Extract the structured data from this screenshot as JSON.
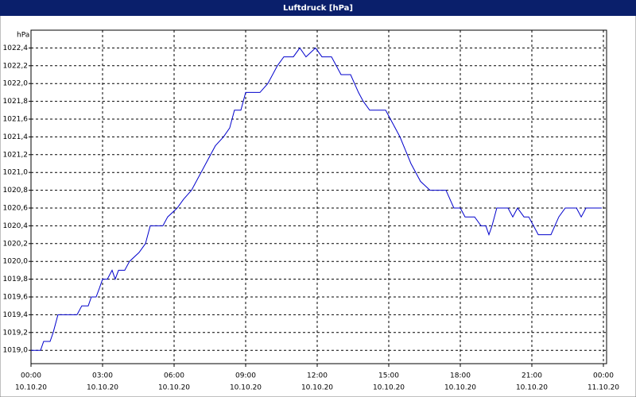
{
  "window_title": "Luftdruck [hPa]",
  "chart_data": {
    "type": "line",
    "y_label": "hPa",
    "x": [
      0,
      0.4,
      0.53,
      0.8,
      0.93,
      1.13,
      1.93,
      2.13,
      2.4,
      2.53,
      2.73,
      2.87,
      3,
      3.2,
      3.4,
      3.53,
      3.67,
      3.93,
      4.13,
      4.53,
      4.8,
      5,
      5.53,
      5.73,
      6.13,
      6.4,
      6.73,
      7.73,
      8.07,
      8.33,
      8.53,
      8.8,
      9,
      9.6,
      9.93,
      10.33,
      10.6,
      11,
      11.27,
      11.53,
      11.93,
      12.2,
      12.6,
      13,
      13.4,
      13.73,
      13.93,
      14.2,
      14.87,
      15.07,
      15.47,
      15.93,
      16.33,
      16.73,
      17.4,
      17.73,
      18,
      18.2,
      18.6,
      18.87,
      19.07,
      19.2,
      19.33,
      19.53,
      20,
      20.2,
      20.4,
      20.67,
      20.87,
      21.27,
      21.8,
      22.13,
      22.4,
      22.87,
      23.07,
      23.27,
      23.93
    ],
    "series": [
      {
        "name": "Luftdruck",
        "color": "#0000cc",
        "values": [
          1019.0,
          1019.0,
          1019.1,
          1019.1,
          1019.2,
          1019.4,
          1019.4,
          1019.5,
          1019.5,
          1019.6,
          1019.6,
          1019.7,
          1019.8,
          1019.8,
          1019.9,
          1019.8,
          1019.9,
          1019.9,
          1020.0,
          1020.1,
          1020.2,
          1020.4,
          1020.4,
          1020.5,
          1020.6,
          1020.7,
          1020.8,
          1021.3,
          1021.4,
          1021.5,
          1021.7,
          1021.7,
          1021.9,
          1021.9,
          1022.0,
          1022.2,
          1022.3,
          1022.3,
          1022.4,
          1022.3,
          1022.4,
          1022.3,
          1022.3,
          1022.1,
          1022.1,
          1021.9,
          1021.8,
          1021.7,
          1021.7,
          1021.6,
          1021.4,
          1021.1,
          1020.9,
          1020.8,
          1020.8,
          1020.6,
          1020.6,
          1020.5,
          1020.5,
          1020.4,
          1020.4,
          1020.3,
          1020.4,
          1020.6,
          1020.6,
          1020.5,
          1020.6,
          1020.5,
          1020.5,
          1020.3,
          1020.3,
          1020.5,
          1020.6,
          1020.6,
          1020.5,
          1020.6,
          1020.6
        ]
      }
    ],
    "xlim": [
      0,
      24
    ],
    "xticks": [
      {
        "value": 0,
        "label": "00:00"
      },
      {
        "value": 3,
        "label": "03:00"
      },
      {
        "value": 6,
        "label": "06:00"
      },
      {
        "value": 9,
        "label": "09:00"
      },
      {
        "value": 12,
        "label": "12:00"
      },
      {
        "value": 15,
        "label": "15:00"
      },
      {
        "value": 18,
        "label": "18:00"
      },
      {
        "value": 21,
        "label": "21:00"
      },
      {
        "value": 24,
        "label": "00:00"
      }
    ],
    "xtick_dates": [
      "10.10.20",
      "10.10.20",
      "10.10.20",
      "10.10.20",
      "10.10.20",
      "10.10.20",
      "10.10.20",
      "10.10.20",
      "11.10.20"
    ],
    "ylim": [
      1018.85,
      1022.6
    ],
    "yticks": [
      {
        "value": 1019.0,
        "label": "1019,0"
      },
      {
        "value": 1019.2,
        "label": "1019,2"
      },
      {
        "value": 1019.4,
        "label": "1019,4"
      },
      {
        "value": 1019.6,
        "label": "1019,6"
      },
      {
        "value": 1019.8,
        "label": "1019,8"
      },
      {
        "value": 1020.0,
        "label": "1020,0"
      },
      {
        "value": 1020.2,
        "label": "1020,2"
      },
      {
        "value": 1020.4,
        "label": "1020,4"
      },
      {
        "value": 1020.6,
        "label": "1020,6"
      },
      {
        "value": 1020.8,
        "label": "1020,8"
      },
      {
        "value": 1021.0,
        "label": "1021,0"
      },
      {
        "value": 1021.2,
        "label": "1021,2"
      },
      {
        "value": 1021.4,
        "label": "1021,4"
      },
      {
        "value": 1021.6,
        "label": "1021,6"
      },
      {
        "value": 1021.8,
        "label": "1021,8"
      },
      {
        "value": 1022.0,
        "label": "1022,0"
      },
      {
        "value": 1022.2,
        "label": "1022,2"
      },
      {
        "value": 1022.4,
        "label": "1022,4"
      }
    ],
    "grid": true
  }
}
